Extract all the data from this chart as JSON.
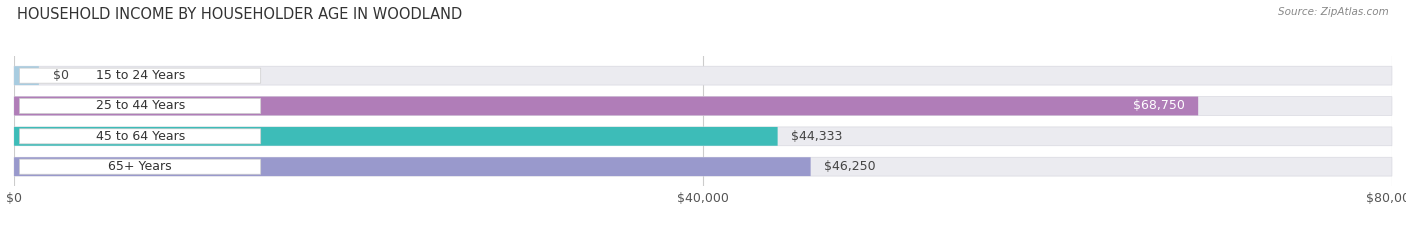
{
  "title": "HOUSEHOLD INCOME BY HOUSEHOLDER AGE IN WOODLAND",
  "source": "Source: ZipAtlas.com",
  "categories": [
    "15 to 24 Years",
    "25 to 44 Years",
    "45 to 64 Years",
    "65+ Years"
  ],
  "values": [
    0,
    68750,
    44333,
    46250
  ],
  "bar_colors": [
    "#a8cce0",
    "#b07db8",
    "#3dbcb8",
    "#9999cc"
  ],
  "bar_labels": [
    "$0",
    "$68,750",
    "$44,333",
    "$46,250"
  ],
  "bg_color": "#ffffff",
  "bar_bg_color": "#ebebf0",
  "xlim": [
    0,
    80000
  ],
  "xticks": [
    0,
    40000,
    80000
  ],
  "xtick_labels": [
    "$0",
    "$40,000",
    "$80,000"
  ],
  "title_fontsize": 10.5,
  "label_fontsize": 9,
  "value_fontsize": 9,
  "bar_height": 0.62,
  "label_pill_color": "#ffffff",
  "label_pill_edge": "#cccccc"
}
